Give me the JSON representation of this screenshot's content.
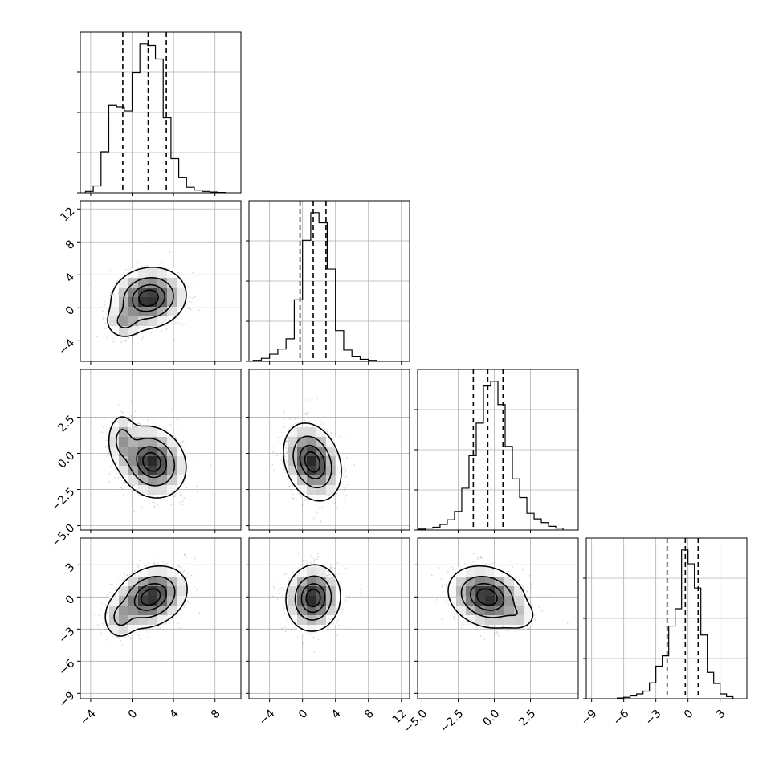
{
  "chart_data": {
    "type": "corner",
    "grid": true,
    "variables": [
      {
        "range": [
          -5,
          10.5
        ],
        "ticks": [
          -4,
          0,
          4,
          8
        ],
        "tick_labels": [
          "−4",
          "0",
          "4",
          "8"
        ],
        "quantiles": [
          -0.9,
          1.55,
          3.3
        ],
        "hist": {
          "bins": [
            -4.5,
            -3.75,
            -3,
            -2.25,
            -1.5,
            -0.75,
            0,
            0.75,
            1.5,
            2.25,
            3,
            3.75,
            4.5,
            5.25,
            6,
            6.75,
            7.5,
            8.25,
            9
          ],
          "counts": [
            1,
            5,
            30,
            64,
            63,
            60,
            88,
            109,
            108,
            98,
            55,
            25,
            11,
            4,
            2,
            1,
            0.5,
            0.2
          ]
        }
      },
      {
        "range": [
          -6.5,
          13
        ],
        "ticks": [
          -4,
          0,
          4,
          8,
          12
        ],
        "tick_labels": [
          "−4",
          "0",
          "4",
          "8",
          "12"
        ],
        "quantiles": [
          -0.3,
          1.3,
          2.85
        ],
        "hist": {
          "bins": [
            -6,
            -5,
            -4,
            -3,
            -2,
            -1,
            0,
            1,
            2,
            3,
            4,
            5,
            6,
            7,
            8,
            9
          ],
          "counts": [
            1,
            3,
            7,
            12,
            22,
            60,
            118,
            145,
            135,
            90,
            30,
            11,
            5,
            2,
            1
          ]
        }
      },
      {
        "range": [
          -5.3,
          5.8
        ],
        "ticks": [
          -5.0,
          -2.5,
          0.0,
          2.5
        ],
        "tick_labels": [
          "−5.0",
          "−2.5",
          "0.0",
          "2.5"
        ],
        "quantiles": [
          -1.45,
          -0.45,
          0.6
        ],
        "hist": {
          "bins": [
            -5.25,
            -4.75,
            -4.25,
            -3.75,
            -3.25,
            -2.75,
            -2.25,
            -1.75,
            -1.25,
            -0.75,
            -0.25,
            0.25,
            0.75,
            1.25,
            1.75,
            2.25,
            2.75,
            3.25,
            3.75,
            4.25,
            4.75
          ],
          "counts": [
            1,
            2,
            3,
            6,
            11,
            20,
            45,
            80,
            115,
            155,
            160,
            135,
            90,
            55,
            35,
            18,
            12,
            8,
            4,
            2
          ]
        }
      },
      {
        "range": [
          -9.5,
          5.5
        ],
        "ticks": [
          -9,
          -6,
          -3,
          0,
          3
        ],
        "tick_labels": [
          "−9",
          "−6",
          "−3",
          "0",
          "3"
        ],
        "quantiles": [
          -1.95,
          -0.25,
          0.95
        ],
        "hist": {
          "bins": [
            -6.6,
            -6,
            -5.4,
            -4.8,
            -4.2,
            -3.6,
            -3,
            -2.4,
            -1.8,
            -1.2,
            -0.6,
            0,
            0.6,
            1.2,
            1.8,
            2.4,
            3,
            3.6,
            4.2
          ],
          "counts": [
            1,
            2,
            4,
            7,
            11,
            23,
            47,
            62,
            105,
            130,
            215,
            195,
            160,
            92,
            38,
            22,
            7,
            3
          ]
        }
      }
    ],
    "pairs": [
      {
        "col": 0,
        "row": 1,
        "center": [
          1.6,
          1.2
        ],
        "sigma": [
          1.75,
          1.8
        ],
        "rho": 0.1,
        "tail": {
          "center": [
            -0.8,
            -1.8
          ],
          "sigma": [
            0.9,
            1.0
          ],
          "weight": 0.18
        },
        "contour_levels": [
          0.118,
          0.393,
          0.675,
          0.865
        ]
      },
      {
        "col": 0,
        "row": 2,
        "center": [
          1.9,
          -0.6
        ],
        "sigma": [
          1.6,
          1.2
        ],
        "rho": -0.15,
        "tail": {
          "center": [
            -1.0,
            1.0
          ],
          "sigma": [
            0.7,
            0.9
          ],
          "weight": 0.2
        },
        "contour_levels": [
          0.118,
          0.393,
          0.675,
          0.865
        ]
      },
      {
        "col": 1,
        "row": 2,
        "center": [
          1.2,
          -0.6
        ],
        "sigma": [
          1.7,
          1.3
        ],
        "rho": -0.25,
        "contour_levels": [
          0.118,
          0.393,
          0.675,
          0.865
        ]
      },
      {
        "col": 0,
        "row": 3,
        "center": [
          1.8,
          0.0
        ],
        "sigma": [
          1.7,
          1.4
        ],
        "rho": 0.25,
        "tail": {
          "center": [
            -1.2,
            -2.0
          ],
          "sigma": [
            0.8,
            1.0
          ],
          "weight": 0.18
        },
        "contour_levels": [
          0.118,
          0.393,
          0.675,
          0.865
        ]
      },
      {
        "col": 1,
        "row": 3,
        "center": [
          1.3,
          -0.1
        ],
        "sigma": [
          1.6,
          1.5
        ],
        "rho": 0.05,
        "contour_levels": [
          0.118,
          0.393,
          0.675,
          0.865
        ]
      },
      {
        "col": 2,
        "row": 3,
        "center": [
          -0.5,
          0.0
        ],
        "sigma": [
          1.3,
          1.4
        ],
        "rho": -0.2,
        "tail": {
          "center": [
            1.8,
            -1.8
          ],
          "sigma": [
            0.6,
            0.7
          ],
          "weight": 0.1
        },
        "contour_levels": [
          0.118,
          0.393,
          0.675,
          0.865
        ]
      }
    ]
  }
}
